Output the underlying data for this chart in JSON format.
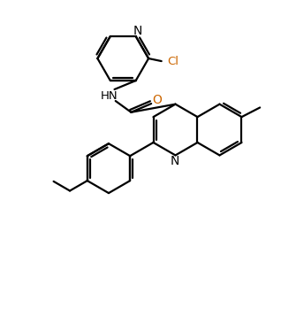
{
  "bg_color": "#ffffff",
  "bond_color": "#000000",
  "atom_color": "#000000",
  "O_color": "#cc6600",
  "Cl_color": "#cc6600",
  "N_color": "#000000",
  "line_width": 1.6,
  "figsize": [
    3.18,
    3.66
  ],
  "dpi": 100,
  "xlim": [
    0,
    10
  ],
  "ylim": [
    0,
    12
  ]
}
